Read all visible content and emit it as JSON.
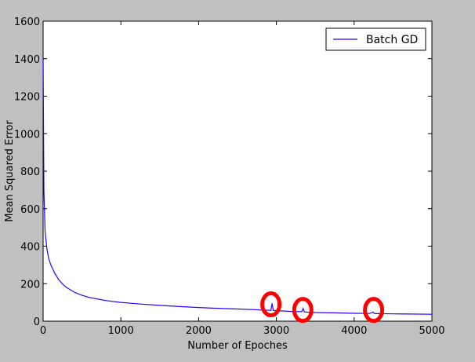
{
  "chart_data": {
    "type": "line",
    "xlabel": "Number of Epoches",
    "ylabel": "Mean Squared Error",
    "xlim": [
      0,
      5000
    ],
    "ylim": [
      0,
      1600
    ],
    "xticks": [
      0,
      1000,
      2000,
      3000,
      4000,
      5000
    ],
    "yticks": [
      0,
      200,
      400,
      600,
      800,
      1000,
      1200,
      1400,
      1600
    ],
    "grid": false,
    "legend": {
      "location": "top-right",
      "entries": [
        "Batch GD"
      ]
    },
    "series": [
      {
        "name": "Batch GD",
        "color": "#2a00ff",
        "x": [
          0,
          10,
          25,
          50,
          75,
          100,
          150,
          200,
          250,
          300,
          400,
          500,
          600,
          800,
          1000,
          1200,
          1500,
          1800,
          2000,
          2200,
          2500,
          2800,
          2930,
          2945,
          2960,
          2980,
          3000,
          3200,
          3330,
          3345,
          3360,
          3380,
          3400,
          3500,
          3800,
          4000,
          4200,
          4245,
          4260,
          4275,
          4300,
          4500,
          4700,
          5000
        ],
        "y": [
          1400,
          700,
          480,
          380,
          330,
          300,
          255,
          222,
          198,
          180,
          155,
          138,
          126,
          110,
          100,
          93,
          84,
          77,
          73,
          69,
          65,
          60,
          58,
          95,
          58,
          57,
          56,
          52,
          51,
          68,
          49,
          49,
          48,
          46,
          44,
          42,
          41,
          48,
          41,
          40,
          40,
          39,
          38,
          37
        ]
      }
    ],
    "annotations": [
      {
        "type": "circle",
        "color": "#ff0000",
        "x": 2930,
        "y": 90
      },
      {
        "type": "circle",
        "color": "#ff0000",
        "x": 3340,
        "y": 60
      },
      {
        "type": "circle",
        "color": "#ff0000",
        "x": 4250,
        "y": 60
      }
    ]
  }
}
